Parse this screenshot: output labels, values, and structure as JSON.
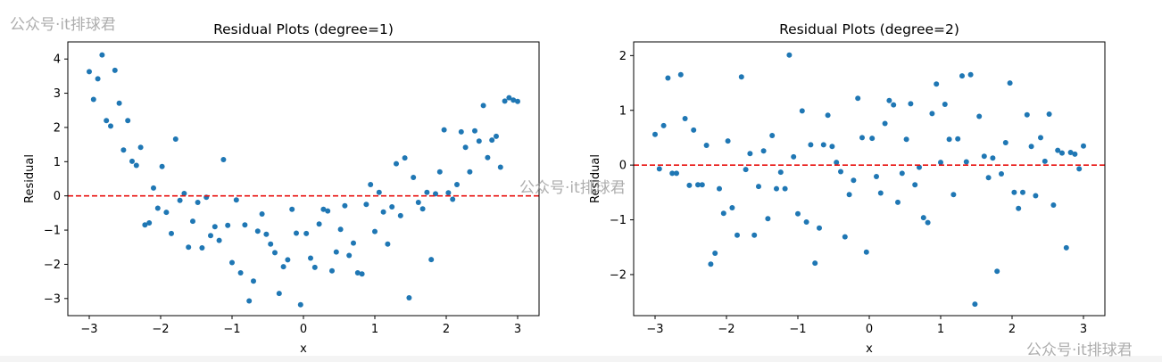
{
  "watermarks": [
    "公众号·it排球君",
    "公众号·it排球君",
    "公众号·it排球君"
  ],
  "colors": {
    "points": "#1f77b4",
    "zero_line": "#e8110f",
    "axes": "#000000",
    "background": "#ffffff"
  },
  "chart_data": [
    {
      "type": "scatter",
      "title": "Residual Plots (degree=1)",
      "xlabel": "x",
      "ylabel": "Residual",
      "xlim": [
        -3.3,
        3.3
      ],
      "ylim": [
        -3.5,
        4.5
      ],
      "xticks": [
        -3,
        -2,
        -1,
        0,
        1,
        2,
        3
      ],
      "xtick_labels": [
        "−3",
        "−2",
        "−1",
        "0",
        "1",
        "2",
        "3"
      ],
      "yticks": [
        -3,
        -2,
        -1,
        0,
        1,
        2,
        3,
        4
      ],
      "ytick_labels": [
        "−3",
        "−2",
        "−1",
        "0",
        "1",
        "2",
        "3",
        "4"
      ],
      "reference_line": {
        "y": 0,
        "style": "dashed"
      },
      "grid": false,
      "points": [
        [
          -3.0,
          3.63
        ],
        [
          -2.94,
          2.82
        ],
        [
          -2.88,
          3.42
        ],
        [
          -2.82,
          4.12
        ],
        [
          -2.76,
          2.2
        ],
        [
          -2.7,
          2.04
        ],
        [
          -2.64,
          3.67
        ],
        [
          -2.58,
          2.71
        ],
        [
          -2.52,
          1.34
        ],
        [
          -2.46,
          2.2
        ],
        [
          -2.4,
          1.01
        ],
        [
          -2.34,
          0.89
        ],
        [
          -2.28,
          1.42
        ],
        [
          -2.22,
          -0.85
        ],
        [
          -2.16,
          -0.79
        ],
        [
          -2.1,
          0.23
        ],
        [
          -2.04,
          -0.36
        ],
        [
          -1.98,
          0.86
        ],
        [
          -1.92,
          -0.48
        ],
        [
          -1.85,
          -1.1
        ],
        [
          -1.79,
          1.66
        ],
        [
          -1.73,
          -0.13
        ],
        [
          -1.67,
          0.07
        ],
        [
          -1.61,
          -1.5
        ],
        [
          -1.55,
          -0.74
        ],
        [
          -1.48,
          -0.19
        ],
        [
          -1.42,
          -1.52
        ],
        [
          -1.36,
          -0.04
        ],
        [
          -1.3,
          -1.16
        ],
        [
          -1.24,
          -0.9
        ],
        [
          -1.18,
          -1.3
        ],
        [
          -1.12,
          1.06
        ],
        [
          -1.06,
          -0.86
        ],
        [
          -1.0,
          -1.95
        ],
        [
          -0.94,
          -0.12
        ],
        [
          -0.88,
          -2.25
        ],
        [
          -0.82,
          -0.85
        ],
        [
          -0.76,
          -3.07
        ],
        [
          -0.7,
          -2.49
        ],
        [
          -0.64,
          -1.03
        ],
        [
          -0.58,
          -0.53
        ],
        [
          -0.52,
          -1.12
        ],
        [
          -0.46,
          -1.41
        ],
        [
          -0.4,
          -1.66
        ],
        [
          -0.34,
          -2.85
        ],
        [
          -0.28,
          -2.07
        ],
        [
          -0.22,
          -1.87
        ],
        [
          -0.16,
          -0.39
        ],
        [
          -0.1,
          -1.09
        ],
        [
          -0.04,
          -3.18
        ],
        [
          0.04,
          -1.1
        ],
        [
          0.1,
          -1.82
        ],
        [
          0.16,
          -2.09
        ],
        [
          0.22,
          -0.82
        ],
        [
          0.28,
          -0.39
        ],
        [
          0.34,
          -0.44
        ],
        [
          0.4,
          -2.19
        ],
        [
          0.46,
          -1.64
        ],
        [
          0.52,
          -0.98
        ],
        [
          0.58,
          -0.29
        ],
        [
          0.64,
          -1.74
        ],
        [
          0.7,
          -1.38
        ],
        [
          0.76,
          -2.25
        ],
        [
          0.82,
          -2.28
        ],
        [
          0.88,
          -0.25
        ],
        [
          0.94,
          0.33
        ],
        [
          1.0,
          -1.04
        ],
        [
          1.06,
          0.1
        ],
        [
          1.12,
          -0.47
        ],
        [
          1.18,
          -1.41
        ],
        [
          1.24,
          -0.32
        ],
        [
          1.3,
          0.94
        ],
        [
          1.36,
          -0.58
        ],
        [
          1.42,
          1.11
        ],
        [
          1.48,
          -2.98
        ],
        [
          1.54,
          0.54
        ],
        [
          1.61,
          -0.19
        ],
        [
          1.67,
          -0.38
        ],
        [
          1.73,
          0.1
        ],
        [
          1.79,
          -1.86
        ],
        [
          1.85,
          0.06
        ],
        [
          1.91,
          0.7
        ],
        [
          1.97,
          1.93
        ],
        [
          2.03,
          0.09
        ],
        [
          2.09,
          -0.1
        ],
        [
          2.15,
          0.33
        ],
        [
          2.21,
          1.87
        ],
        [
          2.27,
          1.42
        ],
        [
          2.33,
          0.7
        ],
        [
          2.4,
          1.9
        ],
        [
          2.46,
          1.6
        ],
        [
          2.52,
          2.64
        ],
        [
          2.58,
          1.12
        ],
        [
          2.64,
          1.63
        ],
        [
          2.7,
          1.74
        ],
        [
          2.76,
          0.84
        ],
        [
          2.82,
          2.77
        ],
        [
          2.88,
          2.87
        ],
        [
          2.94,
          2.8
        ],
        [
          3.0,
          2.76
        ]
      ]
    },
    {
      "type": "scatter",
      "title": "Residual Plots (degree=2)",
      "xlabel": "x",
      "ylabel": "Residual",
      "xlim": [
        -3.3,
        3.3
      ],
      "ylim": [
        -2.75,
        2.25
      ],
      "xticks": [
        -3,
        -2,
        -1,
        0,
        1,
        2,
        3
      ],
      "xtick_labels": [
        "−3",
        "−2",
        "−1",
        "0",
        "1",
        "2",
        "3"
      ],
      "yticks": [
        -2,
        -1,
        0,
        1,
        2
      ],
      "ytick_labels": [
        "−2",
        "−1",
        "0",
        "1",
        "2"
      ],
      "reference_line": {
        "y": 0,
        "style": "dashed"
      },
      "grid": false,
      "points": [
        [
          -3.0,
          0.56
        ],
        [
          -2.94,
          -0.07
        ],
        [
          -2.88,
          0.72
        ],
        [
          -2.82,
          1.59
        ],
        [
          -2.76,
          -0.15
        ],
        [
          -2.7,
          -0.15
        ],
        [
          -2.64,
          1.65
        ],
        [
          -2.58,
          0.85
        ],
        [
          -2.52,
          -0.37
        ],
        [
          -2.46,
          0.64
        ],
        [
          -2.4,
          -0.36
        ],
        [
          -2.34,
          -0.36
        ],
        [
          -2.28,
          0.36
        ],
        [
          -2.22,
          -1.81
        ],
        [
          -2.16,
          -1.61
        ],
        [
          -2.1,
          -0.43
        ],
        [
          -2.04,
          -0.88
        ],
        [
          -1.98,
          0.44
        ],
        [
          -1.92,
          -0.78
        ],
        [
          -1.85,
          -1.28
        ],
        [
          -1.79,
          1.61
        ],
        [
          -1.73,
          -0.08
        ],
        [
          -1.67,
          0.21
        ],
        [
          -1.61,
          -1.28
        ],
        [
          -1.55,
          -0.39
        ],
        [
          -1.48,
          0.26
        ],
        [
          -1.42,
          -0.98
        ],
        [
          -1.36,
          0.54
        ],
        [
          -1.3,
          -0.43
        ],
        [
          -1.24,
          -0.13
        ],
        [
          -1.18,
          -0.43
        ],
        [
          -1.12,
          2.01
        ],
        [
          -1.06,
          0.15
        ],
        [
          -1.0,
          -0.89
        ],
        [
          -0.94,
          0.99
        ],
        [
          -0.88,
          -1.04
        ],
        [
          -0.82,
          0.37
        ],
        [
          -0.76,
          -1.79
        ],
        [
          -0.7,
          -1.15
        ],
        [
          -0.64,
          0.37
        ],
        [
          -0.58,
          0.91
        ],
        [
          -0.52,
          0.34
        ],
        [
          -0.46,
          0.05
        ],
        [
          -0.4,
          -0.12
        ],
        [
          -0.34,
          -1.31
        ],
        [
          -0.28,
          -0.54
        ],
        [
          -0.22,
          -0.28
        ],
        [
          -0.16,
          1.22
        ],
        [
          -0.1,
          0.5
        ],
        [
          -0.04,
          -1.59
        ],
        [
          0.04,
          0.49
        ],
        [
          0.1,
          -0.21
        ],
        [
          0.16,
          -0.51
        ],
        [
          0.22,
          0.76
        ],
        [
          0.28,
          1.18
        ],
        [
          0.34,
          1.1
        ],
        [
          0.4,
          -0.68
        ],
        [
          0.46,
          -0.15
        ],
        [
          0.52,
          0.47
        ],
        [
          0.58,
          1.12
        ],
        [
          0.64,
          -0.36
        ],
        [
          0.7,
          -0.04
        ],
        [
          0.76,
          -0.96
        ],
        [
          0.82,
          -1.05
        ],
        [
          0.88,
          0.94
        ],
        [
          0.94,
          1.48
        ],
        [
          1.0,
          0.05
        ],
        [
          1.06,
          1.11
        ],
        [
          1.12,
          0.47
        ],
        [
          1.18,
          -0.54
        ],
        [
          1.24,
          0.48
        ],
        [
          1.3,
          1.63
        ],
        [
          1.36,
          0.06
        ],
        [
          1.42,
          1.65
        ],
        [
          1.48,
          -2.54
        ],
        [
          1.54,
          0.89
        ],
        [
          1.61,
          0.16
        ],
        [
          1.67,
          -0.23
        ],
        [
          1.73,
          0.13
        ],
        [
          1.79,
          -1.94
        ],
        [
          1.85,
          -0.16
        ],
        [
          1.91,
          0.41
        ],
        [
          1.97,
          1.5
        ],
        [
          2.03,
          -0.5
        ],
        [
          2.09,
          -0.79
        ],
        [
          2.15,
          -0.5
        ],
        [
          2.21,
          0.92
        ],
        [
          2.27,
          0.34
        ],
        [
          2.33,
          -0.56
        ],
        [
          2.4,
          0.5
        ],
        [
          2.46,
          0.07
        ],
        [
          2.52,
          0.93
        ],
        [
          2.58,
          -0.73
        ],
        [
          2.64,
          0.27
        ],
        [
          2.7,
          0.22
        ],
        [
          2.76,
          -1.51
        ],
        [
          2.82,
          0.23
        ],
        [
          2.88,
          0.2
        ],
        [
          2.94,
          -0.07
        ],
        [
          3.0,
          0.35
        ]
      ]
    }
  ]
}
